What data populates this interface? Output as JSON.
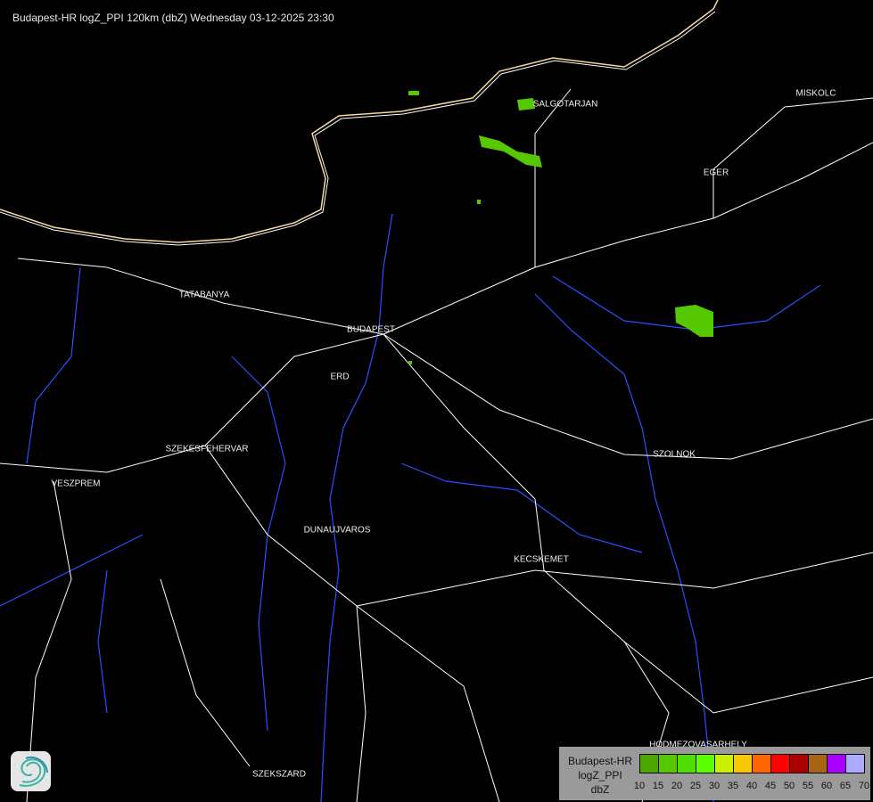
{
  "header": {
    "title": "Budapest-HR logZ_PPI 120km (dbZ) Wednesday 03-12-2025 23:30"
  },
  "map": {
    "background": "#000000",
    "border_color": "#ffffff",
    "river_color": "#2a4fff",
    "coast_color": "#f5d9a0",
    "cities": [
      {
        "name": "SALGOTARJAN"
      },
      {
        "name": "MISKOLC"
      },
      {
        "name": "EGER"
      },
      {
        "name": "TATABANYA"
      },
      {
        "name": "BUDAPEST"
      },
      {
        "name": "ERD"
      },
      {
        "name": "SZEKESFEHERVAR"
      },
      {
        "name": "VESZPREM"
      },
      {
        "name": "DUNAUJVAROS"
      },
      {
        "name": "KECSKEMET"
      },
      {
        "name": "SZOLNOK"
      },
      {
        "name": "HODMEZOVASARHELY"
      },
      {
        "name": "SZEKSZARD"
      }
    ]
  },
  "legend": {
    "lines": [
      "Budapest-HR",
      "logZ_PPI",
      "dbZ"
    ],
    "colors": [
      "#4ca600",
      "#55c800",
      "#50e000",
      "#5aff00",
      "#c8f000",
      "#f5c800",
      "#ff6400",
      "#ff0000",
      "#aa0000",
      "#a86410",
      "#aa00ff",
      "#aaaaff"
    ],
    "ticks": [
      "10",
      "15",
      "20",
      "25",
      "30",
      "35",
      "40",
      "45",
      "50",
      "55",
      "60",
      "65",
      "70"
    ]
  },
  "logo": {
    "icon": "swirl-logo-icon"
  }
}
